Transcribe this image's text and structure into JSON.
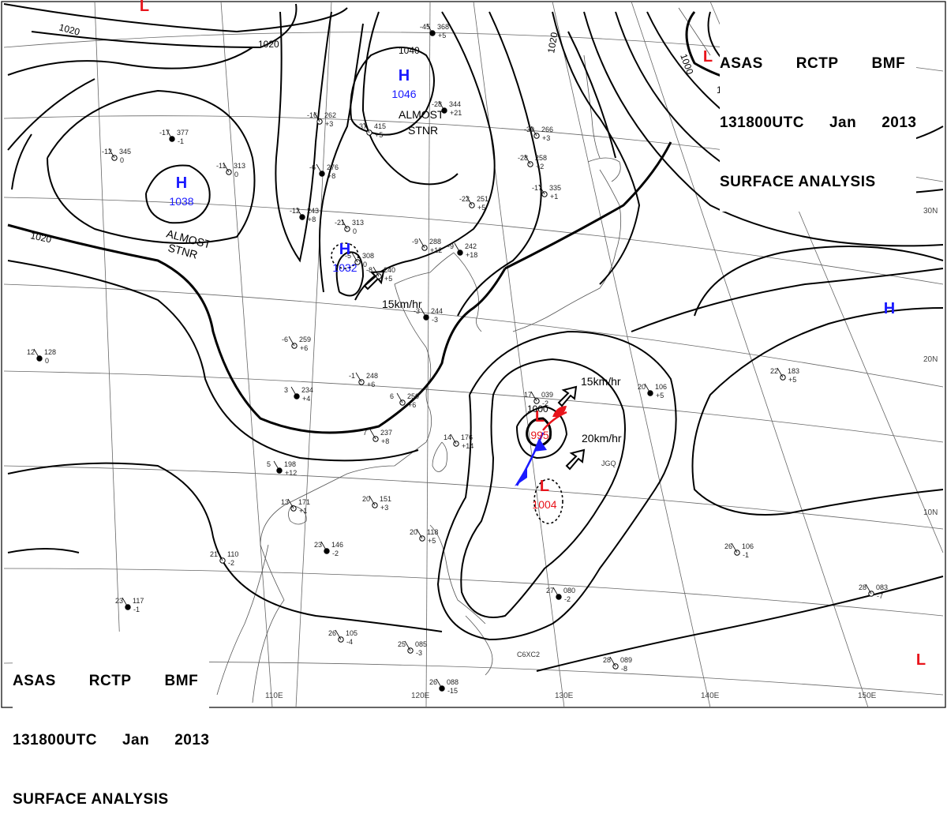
{
  "title_block": {
    "line1": [
      "ASAS",
      "RCTP",
      "BMF"
    ],
    "line2": [
      "131800UTC",
      "Jan",
      "2013"
    ],
    "line3": "SURFACE ANALYSIS"
  },
  "isobar_labels": [
    "1020",
    "1020",
    "1020",
    "1040",
    "1020",
    "1000",
    "1000",
    "1000"
  ],
  "pressure_systems": [
    {
      "type": "H",
      "value": "1046",
      "color": "#1a1aff"
    },
    {
      "type": "H",
      "value": "1038",
      "color": "#1a1aff"
    },
    {
      "type": "H",
      "value": "1032",
      "color": "#1a1aff"
    },
    {
      "type": "H",
      "value": "",
      "color": "#1a1aff"
    },
    {
      "type": "L",
      "value": "",
      "color": "#e8141b"
    },
    {
      "type": "L",
      "value": "",
      "color": "#e8141b"
    },
    {
      "type": "L",
      "value": "",
      "color": "#e8141b"
    },
    {
      "type": "L",
      "value": "995",
      "color": "#e8141b"
    },
    {
      "type": "L",
      "value": "1004",
      "color": "#e8141b"
    },
    {
      "type": "L",
      "value": "",
      "color": "#e8141b"
    }
  ],
  "annotations": {
    "almost_stnr_1": [
      "ALMOST",
      "STNR"
    ],
    "almost_stnr_2": [
      "ALMOST",
      "STNR"
    ],
    "movement": [
      "15km/hr",
      "15km/hr",
      "20km/hr"
    ]
  },
  "longitude_labels": [
    "110E",
    "120E",
    "130E",
    "140E",
    "150E"
  ],
  "latitude_labels": [
    "30N",
    "20N",
    "10N"
  ],
  "station_labels": [
    "JGQ",
    "C6XC2"
  ],
  "station_plots": [
    {
      "t": "-45",
      "p": "368",
      "d": "+5"
    },
    {
      "t": "-16",
      "p": "262",
      "d": "+3"
    },
    {
      "t": "-37",
      "p": "415",
      "d": "+5"
    },
    {
      "t": "-28",
      "p": "344",
      "d": "+21"
    },
    {
      "t": "-39",
      "p": "266",
      "d": "+3"
    },
    {
      "t": "-28",
      "p": "258",
      "d": "+2"
    },
    {
      "t": "-17",
      "p": "377",
      "d": "-1"
    },
    {
      "t": "-12",
      "p": "345",
      "d": "0"
    },
    {
      "t": "-11",
      "p": "313",
      "d": "0"
    },
    {
      "t": "-6",
      "p": "276",
      "d": "+8"
    },
    {
      "t": "-22",
      "p": "251",
      "d": "+5"
    },
    {
      "t": "-17",
      "p": "335",
      "d": "+1"
    },
    {
      "t": "-12",
      "p": "243",
      "d": "+8"
    },
    {
      "t": "-21",
      "p": "313",
      "d": "0"
    },
    {
      "t": "-9",
      "p": "288",
      "d": "+12"
    },
    {
      "t": "-9",
      "p": "242",
      "d": "+18"
    },
    {
      "t": "-5",
      "p": "308",
      "d": "0"
    },
    {
      "t": "-8",
      "p": "240",
      "d": "+5"
    },
    {
      "t": "-3",
      "p": "244",
      "d": "-3"
    },
    {
      "t": "-6",
      "p": "259",
      "d": "+6"
    },
    {
      "t": "-1",
      "p": "248",
      "d": "+6"
    },
    {
      "t": "3",
      "p": "234",
      "d": "+4"
    },
    {
      "t": "6",
      "p": "250",
      "d": "+6"
    },
    {
      "t": "7",
      "p": "237",
      "d": "+8"
    },
    {
      "t": "12",
      "p": "128",
      "d": "0"
    },
    {
      "t": "17",
      "p": "039",
      "d": "-2"
    },
    {
      "t": "14",
      "p": "176",
      "d": "+14"
    },
    {
      "t": "5",
      "p": "198",
      "d": "+12"
    },
    {
      "t": "13",
      "p": "171",
      "d": "+1"
    },
    {
      "t": "20",
      "p": "151",
      "d": "+3"
    },
    {
      "t": "23",
      "p": "146",
      "d": "-2"
    },
    {
      "t": "21",
      "p": "110",
      "d": "-2"
    },
    {
      "t": "20",
      "p": "118",
      "d": "+5"
    },
    {
      "t": "20",
      "p": "106",
      "d": "+5"
    },
    {
      "t": "22",
      "p": "183",
      "d": "+5"
    },
    {
      "t": "26",
      "p": "106",
      "d": "-1"
    },
    {
      "t": "27",
      "p": "080",
      "d": "-2"
    },
    {
      "t": "26",
      "p": "105",
      "d": "-4"
    },
    {
      "t": "25",
      "p": "085",
      "d": "-3"
    },
    {
      "t": "26",
      "p": "088",
      "d": "-15"
    },
    {
      "t": "28",
      "p": "089",
      "d": "-8"
    },
    {
      "t": "28",
      "p": "083",
      "d": "-7"
    },
    {
      "t": "23",
      "p": "117",
      "d": "-1"
    }
  ]
}
